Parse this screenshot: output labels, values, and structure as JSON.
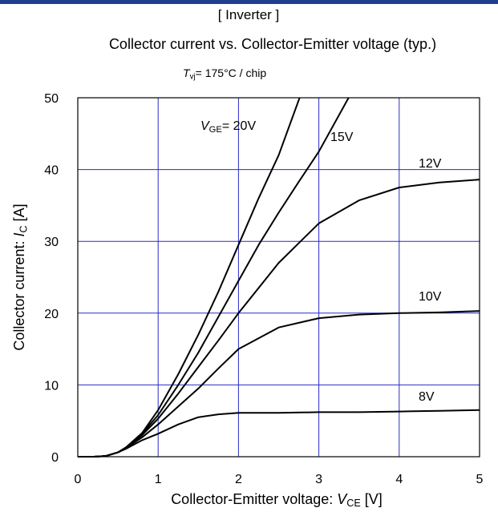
{
  "chart_data": {
    "type": "line",
    "title": "[ Inverter ]",
    "subtitle": "Collector current vs. Collector-Emitter voltage (typ.)",
    "condition": {
      "symbol": "T",
      "sub": "vj",
      "text": "= 175°C / chip"
    },
    "x_label": {
      "text": "Collector-Emitter voltage: ",
      "symbol": "V",
      "sub": "CE",
      "unit": " [V]"
    },
    "y_label": {
      "text": "Collector current: ",
      "symbol": "I",
      "sub": "C",
      "unit": " [A]"
    },
    "label_prefix": {
      "symbol": "V",
      "sub": "GE",
      "text": "= "
    },
    "xlim": [
      0,
      5
    ],
    "xticks": [
      0,
      1,
      2,
      3,
      4,
      5
    ],
    "ylim": [
      0,
      50
    ],
    "yticks": [
      0,
      10,
      20,
      30,
      40,
      50
    ],
    "grid": true,
    "grid_color": "#2b2bc8",
    "series": [
      {
        "name": "20V",
        "color": "#000000",
        "x": [
          0,
          0.2,
          0.35,
          0.5,
          0.6,
          0.8,
          1,
          1.25,
          1.5,
          1.75,
          2,
          2.25,
          2.5,
          2.76
        ],
        "values": [
          0,
          0,
          0.1,
          0.6,
          1.3,
          3.3,
          6.5,
          11.5,
          17,
          23,
          29.5,
          36,
          42,
          50
        ]
      },
      {
        "name": "15V",
        "color": "#000000",
        "x": [
          0,
          0.2,
          0.35,
          0.5,
          0.6,
          0.8,
          1,
          1.25,
          1.5,
          1.75,
          2,
          2.25,
          2.5,
          2.75,
          3,
          3.37
        ],
        "values": [
          0,
          0,
          0.1,
          0.6,
          1.3,
          3.2,
          5.8,
          10,
          14.5,
          19.5,
          24.5,
          29.5,
          34,
          38.3,
          42.5,
          50
        ]
      },
      {
        "name": "12V",
        "color": "#000000",
        "x": [
          0,
          0.2,
          0.35,
          0.5,
          0.6,
          0.8,
          1,
          1.25,
          1.5,
          1.75,
          2,
          2.5,
          3,
          3.5,
          4,
          4.5,
          5
        ],
        "values": [
          0,
          0,
          0.1,
          0.6,
          1.2,
          3,
          5.3,
          8.8,
          12.5,
          16.2,
          20,
          27,
          32.5,
          35.7,
          37.5,
          38.2,
          38.6
        ]
      },
      {
        "name": "10V",
        "color": "#000000",
        "x": [
          0,
          0.2,
          0.35,
          0.5,
          0.6,
          0.8,
          1,
          1.25,
          1.5,
          1.75,
          2,
          2.5,
          3,
          3.5,
          4,
          4.5,
          5
        ],
        "values": [
          0,
          0,
          0.1,
          0.6,
          1.2,
          2.7,
          4.5,
          7,
          9.5,
          12.3,
          15,
          18,
          19.3,
          19.8,
          20,
          20.1,
          20.3
        ]
      },
      {
        "name": "8V",
        "color": "#000000",
        "x": [
          0,
          0.2,
          0.35,
          0.5,
          0.6,
          0.8,
          1,
          1.25,
          1.5,
          1.75,
          2,
          2.5,
          3,
          3.5,
          4,
          4.5,
          5
        ],
        "values": [
          0,
          0,
          0.1,
          0.6,
          1.1,
          2.3,
          3.2,
          4.5,
          5.5,
          5.9,
          6.1,
          6.1,
          6.2,
          6.2,
          6.3,
          6.4,
          6.5
        ]
      }
    ]
  }
}
